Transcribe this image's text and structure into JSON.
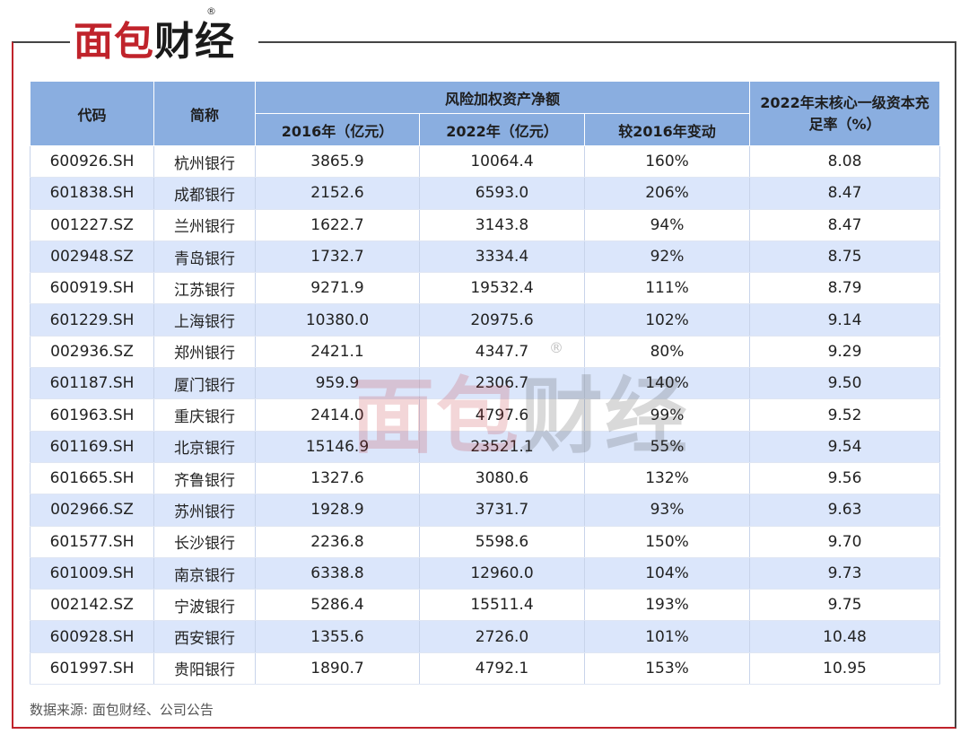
{
  "logo": {
    "text_red": "面包",
    "text_dark": "财经",
    "reg": "®"
  },
  "table": {
    "headers": {
      "code": "代码",
      "name": "简称",
      "rwa_group": "风险加权资产净额",
      "y2016": "2016年（亿元）",
      "y2022": "2022年（亿元）",
      "change": "较2016年变动",
      "cet1": "2022年末核心一级资本充足率（%）"
    },
    "rows": [
      [
        "600926.SH",
        "杭州银行",
        "3865.9",
        "10064.4",
        "160%",
        "8.08"
      ],
      [
        "601838.SH",
        "成都银行",
        "2152.6",
        "6593.0",
        "206%",
        "8.47"
      ],
      [
        "001227.SZ",
        "兰州银行",
        "1622.7",
        "3143.8",
        "94%",
        "8.47"
      ],
      [
        "002948.SZ",
        "青岛银行",
        "1732.7",
        "3334.4",
        "92%",
        "8.75"
      ],
      [
        "600919.SH",
        "江苏银行",
        "9271.9",
        "19532.4",
        "111%",
        "8.79"
      ],
      [
        "601229.SH",
        "上海银行",
        "10380.0",
        "20975.6",
        "102%",
        "9.14"
      ],
      [
        "002936.SZ",
        "郑州银行",
        "2421.1",
        "4347.7",
        "80%",
        "9.29"
      ],
      [
        "601187.SH",
        "厦门银行",
        "959.9",
        "2306.7",
        "140%",
        "9.50"
      ],
      [
        "601963.SH",
        "重庆银行",
        "2414.0",
        "4797.6",
        "99%",
        "9.52"
      ],
      [
        "601169.SH",
        "北京银行",
        "15146.9",
        "23521.1",
        "55%",
        "9.54"
      ],
      [
        "601665.SH",
        "齐鲁银行",
        "1327.6",
        "3080.6",
        "132%",
        "9.56"
      ],
      [
        "002966.SZ",
        "苏州银行",
        "1928.9",
        "3731.7",
        "93%",
        "9.63"
      ],
      [
        "601577.SH",
        "长沙银行",
        "2236.8",
        "5598.6",
        "150%",
        "9.70"
      ],
      [
        "601009.SH",
        "南京银行",
        "6338.8",
        "12960.0",
        "104%",
        "9.73"
      ],
      [
        "002142.SZ",
        "宁波银行",
        "5286.4",
        "15511.4",
        "193%",
        "9.75"
      ],
      [
        "600928.SH",
        "西安银行",
        "1355.6",
        "2726.0",
        "101%",
        "10.48"
      ],
      [
        "601997.SH",
        "贵阳银行",
        "1890.7",
        "4792.1",
        "153%",
        "10.95"
      ]
    ]
  },
  "source": "数据来源: 面包财经、公司公告",
  "colors": {
    "header_bg": "#8aaee0",
    "stripe": "#dbe6fb",
    "brand_red": "#c0232b"
  }
}
